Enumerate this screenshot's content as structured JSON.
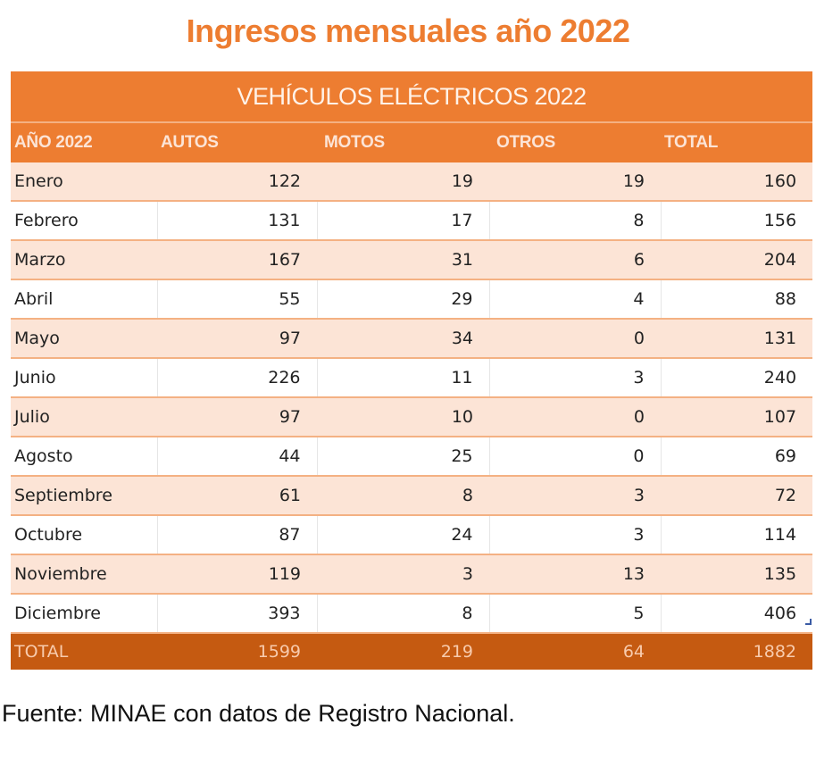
{
  "title": "Ingresos mensuales año 2022",
  "table": {
    "band_title": "VEHÍCULOS ELÉCTRICOS 2022",
    "headers": [
      "AÑO 2022",
      "AUTOS",
      "MOTOS",
      "OTROS",
      "TOTAL"
    ],
    "rows": [
      [
        "Enero",
        "122",
        "19",
        "19",
        "160"
      ],
      [
        "Febrero",
        "131",
        "17",
        "8",
        "156"
      ],
      [
        "Marzo",
        "167",
        "31",
        "6",
        "204"
      ],
      [
        "Abril",
        "55",
        "29",
        "4",
        "88"
      ],
      [
        "Mayo",
        "97",
        "34",
        "0",
        "131"
      ],
      [
        "Junio",
        "226",
        "11",
        "3",
        "240"
      ],
      [
        "Julio",
        "97",
        "10",
        "0",
        "107"
      ],
      [
        "Agosto",
        "44",
        "25",
        "0",
        "69"
      ],
      [
        "Septiembre",
        "61",
        "8",
        "3",
        "72"
      ],
      [
        "Octubre",
        "87",
        "24",
        "3",
        "114"
      ],
      [
        "Noviembre",
        "119",
        "3",
        "13",
        "135"
      ],
      [
        "Diciembre",
        "393",
        "8",
        "5",
        "406"
      ]
    ],
    "total_row": [
      "TOTAL",
      "1599",
      "219",
      "64",
      "1882"
    ]
  },
  "source_note": "Fuente: MINAE con datos de Registro Nacional.",
  "colors": {
    "accent": "#ED7D31",
    "total_row": "#C55A11",
    "row_alt": "#FCE4D6"
  }
}
